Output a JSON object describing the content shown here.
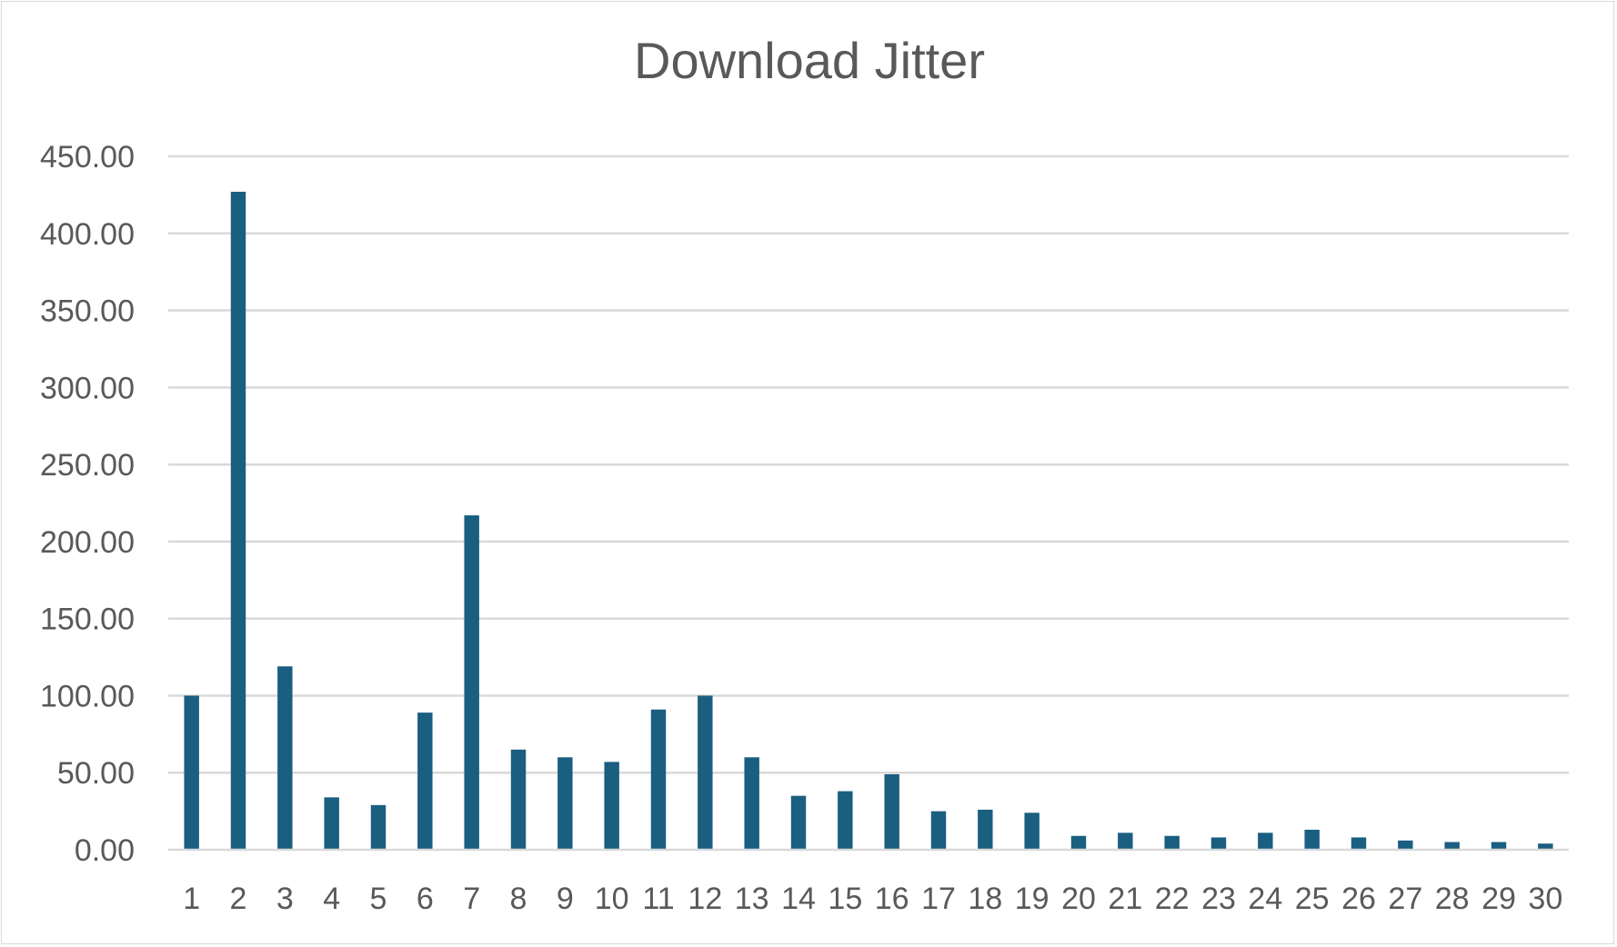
{
  "chart_data": {
    "type": "bar",
    "title": "Download Jitter",
    "xlabel": "",
    "ylabel": "",
    "categories": [
      "1",
      "2",
      "3",
      "4",
      "5",
      "6",
      "7",
      "8",
      "9",
      "10",
      "11",
      "12",
      "13",
      "14",
      "15",
      "16",
      "17",
      "18",
      "19",
      "20",
      "21",
      "22",
      "23",
      "24",
      "25",
      "26",
      "27",
      "28",
      "29",
      "30"
    ],
    "values": [
      100,
      427,
      119,
      34,
      29,
      89,
      217,
      65,
      60,
      57,
      91,
      100,
      60,
      35,
      38,
      49,
      25,
      26,
      24,
      9,
      11,
      9,
      8,
      11,
      13,
      8,
      6,
      5,
      5,
      4
    ],
    "ylim": [
      0,
      450
    ],
    "y_ticks": [
      "0.00",
      "50.00",
      "100.00",
      "150.00",
      "200.00",
      "250.00",
      "300.00",
      "350.00",
      "400.00",
      "450.00"
    ],
    "grid": true,
    "legend": "none",
    "colors": {
      "bar": "#1a5e80",
      "grid": "#d9d9d9",
      "text": "#595959",
      "axis": "#d9d9d9"
    }
  }
}
